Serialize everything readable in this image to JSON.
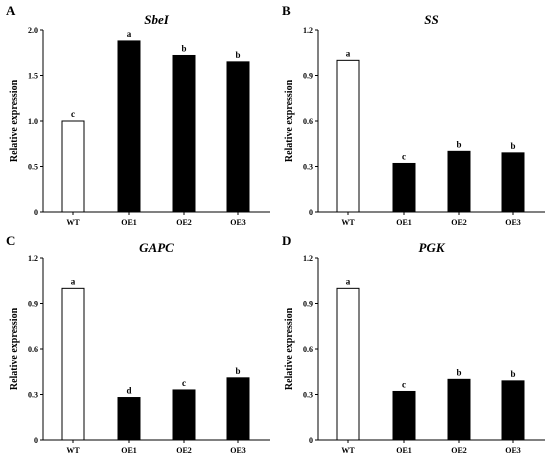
{
  "chart_data": [
    {
      "type": "bar",
      "panel": "A",
      "title": "SbeI",
      "xlabel": "",
      "ylabel": "Relative expression",
      "categories": [
        "WT",
        "OE1",
        "OE2",
        "OE3"
      ],
      "values": [
        1.0,
        1.88,
        1.72,
        1.65
      ],
      "significance": [
        "c",
        "a",
        "b",
        "b"
      ],
      "bar_fill": [
        "#ffffff",
        "#000000",
        "#000000",
        "#000000"
      ],
      "ylim": [
        0,
        2.0
      ],
      "yticks": [
        0,
        0.5,
        1.0,
        1.5,
        2.0
      ],
      "ytick_labels": [
        "0",
        "0.5",
        "1.0",
        "1.5",
        "2.0"
      ],
      "grid": false
    },
    {
      "type": "bar",
      "panel": "B",
      "title": "SS",
      "xlabel": "",
      "ylabel": "Relative expression",
      "categories": [
        "WT",
        "OE1",
        "OE2",
        "OE3"
      ],
      "values": [
        1.0,
        0.32,
        0.4,
        0.39
      ],
      "significance": [
        "a",
        "c",
        "b",
        "b"
      ],
      "bar_fill": [
        "#ffffff",
        "#000000",
        "#000000",
        "#000000"
      ],
      "ylim": [
        0,
        1.2
      ],
      "yticks": [
        0,
        0.3,
        0.6,
        0.9,
        1.2
      ],
      "ytick_labels": [
        "0",
        "0.3",
        "0.6",
        "0.9",
        "1.2"
      ],
      "grid": false
    },
    {
      "type": "bar",
      "panel": "C",
      "title": "GAPC",
      "xlabel": "",
      "ylabel": "Relative expression",
      "categories": [
        "WT",
        "OE1",
        "OE2",
        "OE3"
      ],
      "values": [
        1.0,
        0.28,
        0.33,
        0.41
      ],
      "significance": [
        "a",
        "d",
        "c",
        "b"
      ],
      "bar_fill": [
        "#ffffff",
        "#000000",
        "#000000",
        "#000000"
      ],
      "ylim": [
        0,
        1.2
      ],
      "yticks": [
        0,
        0.3,
        0.6,
        0.9,
        1.2
      ],
      "ytick_labels": [
        "0",
        "0.3",
        "0.6",
        "0.9",
        "1.2"
      ],
      "grid": false
    },
    {
      "type": "bar",
      "panel": "D",
      "title": "PGK",
      "xlabel": "",
      "ylabel": "Relative expression",
      "categories": [
        "WT",
        "OE1",
        "OE2",
        "OE3"
      ],
      "values": [
        1.0,
        0.32,
        0.4,
        0.39
      ],
      "significance": [
        "a",
        "c",
        "b",
        "b"
      ],
      "bar_fill": [
        "#ffffff",
        "#000000",
        "#000000",
        "#000000"
      ],
      "ylim": [
        0,
        1.2
      ],
      "yticks": [
        0,
        0.3,
        0.6,
        0.9,
        1.2
      ],
      "ytick_labels": [
        "0",
        "0.3",
        "0.6",
        "0.9",
        "1.2"
      ],
      "grid": false
    }
  ]
}
